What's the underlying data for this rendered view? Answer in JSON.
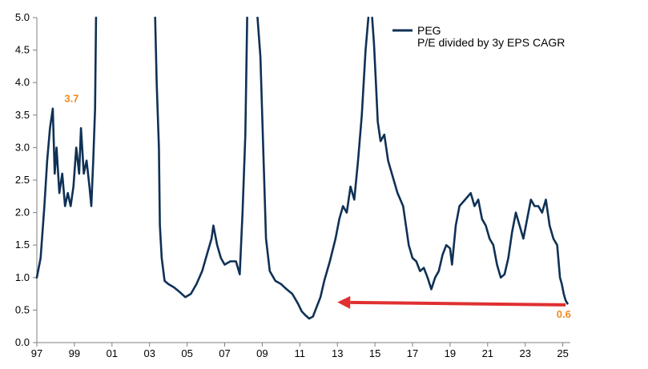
{
  "chart_data": {
    "type": "line",
    "title": "",
    "xlabel": "",
    "ylabel": "",
    "xlim": [
      1997.0,
      2025.4
    ],
    "ylim": [
      0,
      5.0
    ],
    "x_tick_labels": [
      "97",
      "99",
      "01",
      "03",
      "05",
      "07",
      "09",
      "11",
      "13",
      "15",
      "17",
      "19",
      "21",
      "23",
      "25"
    ],
    "x_tick_values": [
      1997,
      1999,
      2001,
      2003,
      2005,
      2007,
      2009,
      2011,
      2013,
      2015,
      2017,
      2019,
      2021,
      2023,
      2025
    ],
    "y_tick_labels": [
      "0.0",
      "0.5",
      "1.0",
      "1.5",
      "2.0",
      "2.5",
      "3.0",
      "3.5",
      "4.0",
      "4.5",
      "5.0"
    ],
    "y_tick_values": [
      0,
      0.5,
      1.0,
      1.5,
      2.0,
      2.5,
      3.0,
      3.5,
      4.0,
      4.5,
      5.0
    ],
    "grid": false,
    "legend": {
      "placement": "top-right",
      "entries": [
        {
          "name": "PEG",
          "description": "P/E divided by 3y EPS CAGR"
        }
      ]
    },
    "series": [
      {
        "name": "PEG",
        "color": "#0f3155",
        "segments": [
          [
            [
              1997.0,
              1.0
            ],
            [
              1997.2,
              1.3
            ],
            [
              1997.4,
              2.1
            ],
            [
              1997.55,
              2.8
            ],
            [
              1997.7,
              3.3
            ],
            [
              1997.85,
              3.6
            ],
            [
              1997.95,
              2.6
            ],
            [
              1998.05,
              3.0
            ],
            [
              1998.2,
              2.3
            ],
            [
              1998.35,
              2.6
            ],
            [
              1998.5,
              2.1
            ],
            [
              1998.65,
              2.3
            ],
            [
              1998.8,
              2.1
            ],
            [
              1998.95,
              2.4
            ],
            [
              1999.1,
              3.0
            ],
            [
              1999.25,
              2.6
            ],
            [
              1999.35,
              3.3
            ],
            [
              1999.5,
              2.6
            ],
            [
              1999.65,
              2.8
            ],
            [
              1999.8,
              2.4
            ],
            [
              1999.9,
              2.1
            ],
            [
              2000.0,
              2.8
            ],
            [
              2000.1,
              3.6
            ],
            [
              2000.15,
              5.0
            ]
          ],
          [
            [
              2003.3,
              5.0
            ],
            [
              2003.38,
              4.0
            ],
            [
              2003.5,
              3.0
            ],
            [
              2003.55,
              1.8
            ],
            [
              2003.65,
              1.3
            ],
            [
              2003.8,
              0.95
            ],
            [
              2004.0,
              0.9
            ],
            [
              2004.3,
              0.85
            ],
            [
              2004.6,
              0.78
            ],
            [
              2004.9,
              0.7
            ],
            [
              2005.2,
              0.75
            ],
            [
              2005.5,
              0.9
            ],
            [
              2005.8,
              1.1
            ],
            [
              2006.1,
              1.4
            ],
            [
              2006.3,
              1.6
            ],
            [
              2006.4,
              1.8
            ],
            [
              2006.6,
              1.5
            ],
            [
              2006.8,
              1.3
            ],
            [
              2007.0,
              1.2
            ],
            [
              2007.3,
              1.25
            ],
            [
              2007.6,
              1.25
            ],
            [
              2007.8,
              1.05
            ],
            [
              2007.95,
              2.0
            ],
            [
              2008.1,
              3.2
            ],
            [
              2008.2,
              5.0
            ]
          ],
          [
            [
              2008.75,
              5.0
            ],
            [
              2008.9,
              4.4
            ],
            [
              2009.05,
              3.0
            ],
            [
              2009.2,
              1.6
            ],
            [
              2009.4,
              1.1
            ],
            [
              2009.7,
              0.95
            ],
            [
              2010.0,
              0.9
            ],
            [
              2010.3,
              0.82
            ],
            [
              2010.6,
              0.75
            ],
            [
              2010.9,
              0.6
            ],
            [
              2011.1,
              0.48
            ],
            [
              2011.3,
              0.42
            ],
            [
              2011.5,
              0.37
            ],
            [
              2011.7,
              0.4
            ],
            [
              2011.9,
              0.55
            ],
            [
              2012.1,
              0.7
            ],
            [
              2012.3,
              0.95
            ],
            [
              2012.6,
              1.25
            ],
            [
              2012.9,
              1.6
            ],
            [
              2013.1,
              1.9
            ],
            [
              2013.3,
              2.1
            ],
            [
              2013.5,
              2.0
            ],
            [
              2013.7,
              2.4
            ],
            [
              2013.9,
              2.2
            ],
            [
              2014.1,
              2.8
            ],
            [
              2014.3,
              3.5
            ],
            [
              2014.5,
              4.5
            ],
            [
              2014.65,
              5.0
            ]
          ],
          [
            [
              2014.85,
              5.0
            ],
            [
              2014.95,
              4.6
            ],
            [
              2015.05,
              4.0
            ],
            [
              2015.15,
              3.4
            ],
            [
              2015.3,
              3.1
            ],
            [
              2015.5,
              3.2
            ],
            [
              2015.7,
              2.8
            ],
            [
              2015.9,
              2.6
            ],
            [
              2016.2,
              2.3
            ],
            [
              2016.5,
              2.1
            ],
            [
              2016.8,
              1.5
            ],
            [
              2017.0,
              1.3
            ],
            [
              2017.2,
              1.25
            ],
            [
              2017.4,
              1.1
            ],
            [
              2017.6,
              1.15
            ],
            [
              2017.8,
              1.0
            ],
            [
              2018.0,
              0.82
            ],
            [
              2018.2,
              1.0
            ],
            [
              2018.4,
              1.1
            ],
            [
              2018.6,
              1.35
            ],
            [
              2018.8,
              1.5
            ],
            [
              2019.0,
              1.45
            ],
            [
              2019.1,
              1.2
            ],
            [
              2019.3,
              1.8
            ],
            [
              2019.5,
              2.1
            ],
            [
              2019.8,
              2.2
            ],
            [
              2020.1,
              2.3
            ],
            [
              2020.3,
              2.1
            ],
            [
              2020.5,
              2.2
            ],
            [
              2020.7,
              1.9
            ],
            [
              2020.9,
              1.8
            ],
            [
              2021.1,
              1.6
            ],
            [
              2021.3,
              1.5
            ],
            [
              2021.5,
              1.2
            ],
            [
              2021.7,
              1.0
            ],
            [
              2021.9,
              1.05
            ],
            [
              2022.1,
              1.3
            ],
            [
              2022.3,
              1.7
            ],
            [
              2022.5,
              2.0
            ],
            [
              2022.7,
              1.8
            ],
            [
              2022.9,
              1.6
            ],
            [
              2023.1,
              1.9
            ],
            [
              2023.3,
              2.2
            ],
            [
              2023.5,
              2.1
            ],
            [
              2023.7,
              2.1
            ],
            [
              2023.9,
              2.0
            ],
            [
              2024.1,
              2.2
            ],
            [
              2024.3,
              1.8
            ],
            [
              2024.5,
              1.6
            ],
            [
              2024.7,
              1.5
            ],
            [
              2024.85,
              1.0
            ],
            [
              2024.95,
              0.9
            ],
            [
              2025.05,
              0.75
            ],
            [
              2025.15,
              0.65
            ],
            [
              2025.25,
              0.6
            ]
          ]
        ]
      }
    ],
    "annotations": [
      {
        "text": "3.7",
        "x": 1998.85,
        "y": 3.7,
        "color": "#f08a24"
      },
      {
        "text": "0.6",
        "x": 2025.05,
        "y": 0.38,
        "color": "#f08a24"
      }
    ],
    "arrow": {
      "color": "#e03030",
      "from": {
        "x": 2025.15,
        "y": 0.58
      },
      "to": {
        "x": 2013.0,
        "y": 0.62
      }
    }
  }
}
